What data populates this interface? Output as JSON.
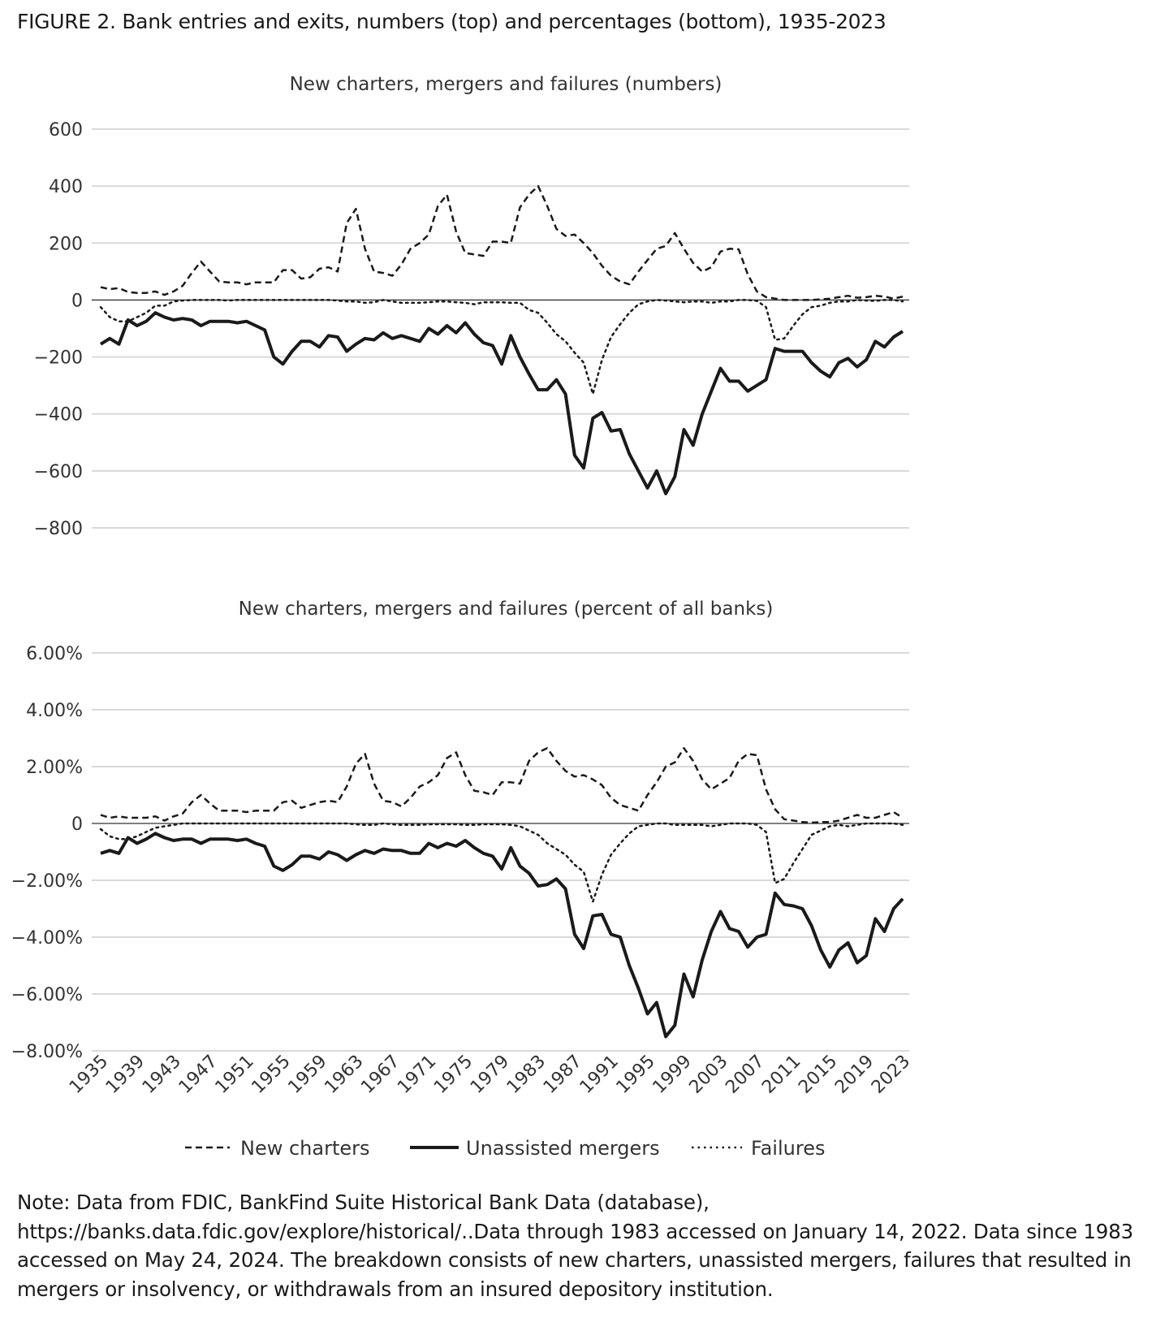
{
  "figure_title": "FIGURE 2. Bank entries and exits, numbers (top) and percentages (bottom), 1935-2023",
  "legend": {
    "position": "bottom",
    "items": [
      "New charters",
      "Unassisted mergers",
      "Failures"
    ]
  },
  "note": "Note: Data from FDIC, BankFind Suite Historical Bank Data (database), https://banks.data.fdic.gov/explore/historical/..Data through 1983 accessed on January 14, 2022. Data since 1983 accessed on May 24, 2024. The breakdown consists of new charters, unassisted mergers, failures that resulted in mergers or insolvency, or withdrawals from an insured depository institution.",
  "colors": {
    "line": "#1a1a1a",
    "grid": "#d9d9d9",
    "zero": "#333333"
  },
  "chart_data": [
    {
      "type": "line",
      "title": "New charters, mergers and failures (numbers)",
      "x_start": 1935,
      "x_end": 2023,
      "ylim": [
        -800,
        600
      ],
      "yticks": [
        600,
        400,
        200,
        0,
        -200,
        -400,
        -600,
        -800
      ],
      "ytick_labels": [
        "600",
        "400",
        "200",
        "0",
        "−200",
        "−400",
        "−600",
        "−800"
      ],
      "grid": true,
      "series": [
        {
          "name": "New charters",
          "style": "dashed",
          "values": [
            45,
            38,
            42,
            28,
            25,
            25,
            30,
            18,
            30,
            50,
            95,
            135,
            100,
            65,
            62,
            62,
            55,
            62,
            62,
            62,
            105,
            105,
            75,
            80,
            110,
            115,
            100,
            270,
            320,
            180,
            100,
            95,
            85,
            125,
            180,
            200,
            230,
            330,
            370,
            240,
            165,
            160,
            155,
            205,
            205,
            200,
            325,
            370,
            400,
            330,
            250,
            225,
            230,
            200,
            165,
            120,
            85,
            65,
            55,
            100,
            140,
            180,
            190,
            235,
            180,
            130,
            100,
            115,
            170,
            180,
            178,
            90,
            30,
            10,
            5,
            0,
            0,
            0,
            0,
            2,
            5,
            10,
            15,
            8,
            10,
            15,
            12,
            5,
            12
          ]
        },
        {
          "name": "Unassisted mergers",
          "style": "solid",
          "values": [
            -155,
            -135,
            -155,
            -70,
            -90,
            -75,
            -45,
            -60,
            -70,
            -65,
            -70,
            -90,
            -75,
            -75,
            -75,
            -80,
            -75,
            -90,
            -105,
            -200,
            -225,
            -180,
            -145,
            -145,
            -165,
            -125,
            -130,
            -180,
            -155,
            -135,
            -140,
            -115,
            -135,
            -125,
            -135,
            -145,
            -100,
            -120,
            -90,
            -115,
            -80,
            -120,
            -150,
            -160,
            -225,
            -125,
            -200,
            -260,
            -315,
            -315,
            -280,
            -330,
            -545,
            -590,
            -415,
            -395,
            -460,
            -455,
            -540,
            -600,
            -660,
            -600,
            -680,
            -620,
            -455,
            -510,
            -400,
            -320,
            -240,
            -285,
            -285,
            -320,
            -300,
            -280,
            -170,
            -180,
            -180,
            -180,
            -220,
            -250,
            -270,
            -220,
            -205,
            -235,
            -210,
            -145,
            -165,
            -130,
            -110
          ]
        },
        {
          "name": "Failures",
          "style": "dotted",
          "values": [
            -25,
            -60,
            -75,
            -75,
            -60,
            -45,
            -20,
            -20,
            -5,
            -2,
            0,
            0,
            0,
            0,
            -2,
            0,
            0,
            0,
            0,
            0,
            0,
            0,
            0,
            0,
            0,
            0,
            -2,
            -5,
            -5,
            -10,
            -8,
            0,
            -5,
            -10,
            -10,
            -10,
            -8,
            -5,
            -5,
            -8,
            -10,
            -15,
            -8,
            -8,
            -8,
            -10,
            -10,
            -35,
            -45,
            -80,
            -120,
            -145,
            -185,
            -220,
            -330,
            -210,
            -130,
            -85,
            -45,
            -15,
            -5,
            0,
            -2,
            -5,
            -8,
            -5,
            -5,
            -10,
            -5,
            -5,
            0,
            0,
            -3,
            -25,
            -140,
            -135,
            -90,
            -50,
            -25,
            -20,
            -10,
            -5,
            -5,
            0,
            -2,
            -3,
            0,
            0,
            -5
          ]
        }
      ]
    },
    {
      "type": "line",
      "title": "New charters, mergers and failures (percent of all banks)",
      "x_start": 1935,
      "x_end": 2023,
      "ylim": [
        -8,
        6
      ],
      "yticks": [
        6,
        4,
        2,
        0,
        -2,
        -4,
        -6,
        -8
      ],
      "ytick_labels": [
        "6.00%",
        "4.00%",
        "2.00%",
        "0",
        "−2.00%",
        "−4.00%",
        "−6.00%",
        "−8.00%"
      ],
      "xtick_labels": [
        "1935",
        "1939",
        "1943",
        "1947",
        "1951",
        "1955",
        "1959",
        "1963",
        "1967",
        "1971",
        "1975",
        "1979",
        "1983",
        "1987",
        "1991",
        "1995",
        "1999",
        "2003",
        "2007",
        "2011",
        "2015",
        "2019",
        "2023"
      ],
      "grid": true,
      "series": [
        {
          "name": "New charters",
          "style": "dashed",
          "values": [
            0.3,
            0.2,
            0.25,
            0.2,
            0.2,
            0.2,
            0.25,
            0.1,
            0.25,
            0.35,
            0.75,
            1.0,
            0.7,
            0.45,
            0.45,
            0.45,
            0.4,
            0.45,
            0.45,
            0.45,
            0.75,
            0.8,
            0.55,
            0.65,
            0.75,
            0.8,
            0.75,
            1.3,
            2.1,
            2.45,
            1.4,
            0.8,
            0.75,
            0.6,
            0.9,
            1.3,
            1.45,
            1.7,
            2.3,
            2.5,
            1.7,
            1.15,
            1.1,
            1.0,
            1.45,
            1.45,
            1.4,
            2.2,
            2.5,
            2.65,
            2.2,
            1.85,
            1.65,
            1.7,
            1.55,
            1.35,
            0.9,
            0.65,
            0.55,
            0.45,
            1.0,
            1.45,
            2.0,
            2.15,
            2.65,
            2.2,
            1.55,
            1.2,
            1.4,
            1.6,
            2.2,
            2.45,
            2.4,
            1.2,
            0.5,
            0.15,
            0.1,
            0.05,
            0.03,
            0.05,
            0.05,
            0.1,
            0.2,
            0.3,
            0.2,
            0.2,
            0.3,
            0.4,
            0.2
          ]
        },
        {
          "name": "Unassisted mergers",
          "style": "solid",
          "values": [
            -1.05,
            -0.95,
            -1.05,
            -0.5,
            -0.7,
            -0.55,
            -0.35,
            -0.5,
            -0.6,
            -0.55,
            -0.55,
            -0.7,
            -0.55,
            -0.55,
            -0.55,
            -0.6,
            -0.55,
            -0.7,
            -0.8,
            -1.5,
            -1.65,
            -1.45,
            -1.15,
            -1.15,
            -1.25,
            -1.0,
            -1.1,
            -1.3,
            -1.1,
            -0.95,
            -1.05,
            -0.9,
            -0.95,
            -0.95,
            -1.05,
            -1.05,
            -0.7,
            -0.85,
            -0.7,
            -0.8,
            -0.6,
            -0.85,
            -1.05,
            -1.15,
            -1.6,
            -0.85,
            -1.5,
            -1.75,
            -2.2,
            -2.15,
            -1.95,
            -2.3,
            -3.9,
            -4.4,
            -3.25,
            -3.2,
            -3.9,
            -4.0,
            -5.0,
            -5.8,
            -6.7,
            -6.3,
            -7.5,
            -7.1,
            -5.3,
            -6.1,
            -4.8,
            -3.8,
            -3.1,
            -3.7,
            -3.8,
            -4.35,
            -4.0,
            -3.9,
            -2.45,
            -2.85,
            -2.9,
            -3.0,
            -3.6,
            -4.45,
            -5.05,
            -4.45,
            -4.2,
            -4.9,
            -4.65,
            -3.35,
            -3.8,
            -3.0,
            -2.65
          ]
        },
        {
          "name": "Failures",
          "style": "dotted",
          "values": [
            -0.2,
            -0.45,
            -0.55,
            -0.55,
            -0.45,
            -0.3,
            -0.15,
            -0.1,
            -0.05,
            0,
            0,
            0,
            0,
            0,
            0,
            0,
            0,
            0,
            0,
            0,
            0,
            0,
            0,
            0,
            0,
            0,
            0,
            0,
            -0.03,
            -0.05,
            -0.05,
            0,
            -0.03,
            -0.05,
            -0.05,
            -0.05,
            -0.03,
            -0.03,
            -0.03,
            -0.03,
            -0.05,
            -0.05,
            -0.03,
            -0.03,
            -0.03,
            -0.05,
            -0.1,
            -0.25,
            -0.4,
            -0.7,
            -0.9,
            -1.1,
            -1.45,
            -1.7,
            -2.75,
            -1.8,
            -1.1,
            -0.7,
            -0.35,
            -0.1,
            -0.05,
            0,
            0,
            -0.05,
            -0.05,
            -0.05,
            -0.05,
            -0.1,
            -0.05,
            0,
            0,
            0,
            -0.05,
            -0.3,
            -2.1,
            -1.95,
            -1.4,
            -0.9,
            -0.4,
            -0.25,
            -0.1,
            -0.05,
            -0.1,
            -0.05,
            0,
            0,
            0,
            0,
            -0.05
          ]
        }
      ]
    }
  ]
}
